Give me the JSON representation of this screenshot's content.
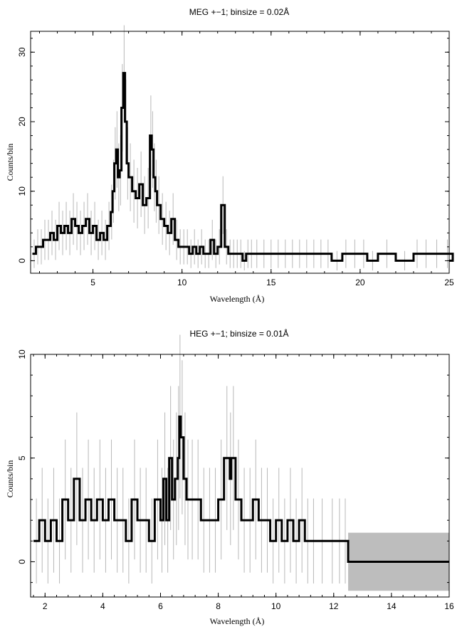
{
  "chart_data": [
    {
      "type": "line",
      "title": "MEG +−1; binsize = 0.02Å",
      "xlabel": "Wavelength (Å)",
      "ylabel": "Counts/bin",
      "xlim": [
        1.5,
        25
      ],
      "ylim": [
        -1.8,
        33
      ],
      "xticks": [
        5,
        10,
        15,
        20,
        25
      ],
      "yticks": [
        0,
        10,
        20,
        30
      ],
      "grid": false,
      "series": [
        {
          "style": "histogram-step-with-errorbars",
          "x": [
            1.6,
            1.8,
            2.0,
            2.2,
            2.4,
            2.6,
            2.8,
            3.0,
            3.2,
            3.4,
            3.6,
            3.8,
            4.0,
            4.2,
            4.4,
            4.6,
            4.8,
            5.0,
            5.2,
            5.4,
            5.6,
            5.8,
            6.0,
            6.1,
            6.2,
            6.3,
            6.4,
            6.5,
            6.6,
            6.7,
            6.8,
            6.9,
            7.0,
            7.2,
            7.4,
            7.6,
            7.8,
            8.0,
            8.2,
            8.3,
            8.4,
            8.5,
            8.6,
            8.8,
            9.0,
            9.2,
            9.4,
            9.6,
            9.8,
            10.0,
            10.2,
            10.4,
            10.6,
            10.8,
            11.0,
            11.2,
            11.4,
            11.6,
            11.8,
            12.0,
            12.2,
            12.4,
            12.6,
            12.8,
            13.0,
            13.2,
            13.4,
            13.6,
            13.8,
            14.0,
            14.4,
            14.8,
            15.2,
            15.6,
            16.0,
            16.4,
            16.8,
            17.2,
            17.6,
            18.0,
            18.4,
            19.0,
            19.4,
            20.0,
            20.4,
            21.0,
            22.0,
            23.0,
            23.4,
            24.0,
            24.6
          ],
          "y": [
            1,
            2,
            2,
            3,
            3,
            4,
            3,
            5,
            4,
            5,
            4,
            6,
            5,
            4,
            5,
            6,
            4,
            5,
            3,
            4,
            3,
            5,
            7,
            10,
            14,
            16,
            12,
            13,
            22,
            27,
            20,
            14,
            12,
            10,
            9,
            11,
            8,
            9,
            18,
            16,
            12,
            10,
            8,
            6,
            5,
            4,
            6,
            3,
            2,
            2,
            2,
            1,
            2,
            1,
            2,
            1,
            1,
            3,
            1,
            2,
            8,
            2,
            1,
            1,
            1,
            1,
            0,
            1,
            1,
            1,
            1,
            1,
            1,
            1,
            1,
            1,
            1,
            1,
            1,
            1,
            0,
            1,
            1,
            1,
            0,
            1,
            0,
            1,
            1,
            1,
            1
          ]
        }
      ]
    },
    {
      "type": "line",
      "title": "HEG +−1; binsize = 0.01Å",
      "xlabel": "Wavelength (Å)",
      "ylabel": "Counts/bin",
      "xlim": [
        1.5,
        16
      ],
      "ylim": [
        -1.7,
        10
      ],
      "xticks": [
        2,
        4,
        6,
        8,
        10,
        12,
        14,
        16
      ],
      "yticks": [
        0,
        5,
        10
      ],
      "grid": false,
      "series": [
        {
          "style": "histogram-step-with-errorbars",
          "x": [
            1.6,
            1.8,
            2.0,
            2.2,
            2.4,
            2.6,
            2.8,
            3.0,
            3.2,
            3.4,
            3.6,
            3.8,
            4.0,
            4.2,
            4.4,
            4.6,
            4.8,
            5.0,
            5.2,
            5.4,
            5.6,
            5.8,
            6.0,
            6.1,
            6.2,
            6.3,
            6.4,
            6.5,
            6.6,
            6.65,
            6.7,
            6.8,
            6.9,
            7.0,
            7.2,
            7.4,
            7.6,
            7.8,
            8.0,
            8.2,
            8.4,
            8.45,
            8.6,
            8.8,
            9.0,
            9.2,
            9.4,
            9.6,
            9.8,
            10.0,
            10.2,
            10.4,
            10.6,
            10.8,
            11.0,
            11.2,
            11.4,
            11.8,
            12.1,
            12.3
          ],
          "y": [
            1,
            2,
            1,
            2,
            1,
            3,
            2,
            4,
            2,
            3,
            2,
            3,
            2,
            3,
            2,
            2,
            1,
            3,
            2,
            2,
            1,
            3,
            2,
            4,
            2,
            5,
            3,
            4,
            5,
            7,
            6,
            4,
            3,
            3,
            3,
            2,
            2,
            2,
            3,
            5,
            4,
            5,
            3,
            2,
            2,
            3,
            2,
            2,
            1,
            2,
            1,
            2,
            1,
            2,
            1,
            1,
            1,
            1,
            1,
            1
          ]
        }
      ]
    }
  ]
}
